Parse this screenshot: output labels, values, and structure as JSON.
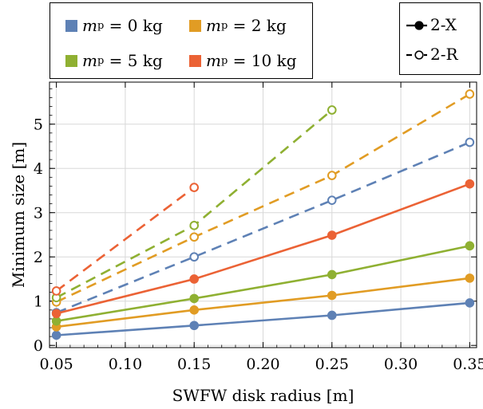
{
  "chart_data": {
    "type": "line",
    "xlabel": "SWFW disk radius [m]",
    "ylabel": "Minimum size [m]",
    "xlim": [
      0.045,
      0.355
    ],
    "ylim": [
      -0.05,
      5.95
    ],
    "x_ticks": [
      "0.05",
      "0.10",
      "0.15",
      "0.20",
      "0.25",
      "0.30",
      "0.35"
    ],
    "y_ticks": [
      "0",
      "1",
      "2",
      "3",
      "4",
      "5"
    ],
    "grid": true,
    "series": [
      {
        "name": "m_p = 0 kg",
        "type": "2-X",
        "color": "#5e81b5",
        "x": [
          0.05,
          0.15,
          0.25,
          0.35
        ],
        "values": [
          0.23,
          0.45,
          0.68,
          0.96
        ]
      },
      {
        "name": "m_p = 2 kg",
        "type": "2-X",
        "color": "#e19c24",
        "x": [
          0.05,
          0.15,
          0.25,
          0.35
        ],
        "values": [
          0.42,
          0.8,
          1.13,
          1.52
        ]
      },
      {
        "name": "m_p = 5 kg",
        "type": "2-X",
        "color": "#8fb032",
        "x": [
          0.05,
          0.15,
          0.25,
          0.35
        ],
        "values": [
          0.55,
          1.06,
          1.6,
          2.25
        ]
      },
      {
        "name": "m_p = 10 kg",
        "type": "2-X",
        "color": "#eb6235",
        "x": [
          0.05,
          0.15,
          0.25,
          0.35
        ],
        "values": [
          0.72,
          1.5,
          2.49,
          3.65
        ]
      },
      {
        "name": "m_p = 0 kg",
        "type": "2-R",
        "color": "#5e81b5",
        "x": [
          0.05,
          0.15,
          0.25,
          0.35
        ],
        "values": [
          0.74,
          2.0,
          3.28,
          4.59
        ]
      },
      {
        "name": "m_p = 2 kg",
        "type": "2-R",
        "color": "#e19c24",
        "x": [
          0.05,
          0.15,
          0.25,
          0.35
        ],
        "values": [
          0.98,
          2.45,
          3.84,
          5.68
        ]
      },
      {
        "name": "m_p = 5 kg",
        "type": "2-R",
        "color": "#8fb032",
        "x": [
          0.05,
          0.15,
          0.25
        ],
        "values": [
          1.08,
          2.71,
          5.32
        ]
      },
      {
        "name": "m_p = 10 kg",
        "type": "2-R",
        "color": "#eb6235",
        "x": [
          0.05,
          0.15
        ],
        "values": [
          1.23,
          3.57
        ]
      }
    ],
    "legend_mass": [
      {
        "label": "m",
        "sub": "p",
        "rest": " = 0 kg",
        "color": "#5e81b5"
      },
      {
        "label": "m",
        "sub": "p",
        "rest": " = 2 kg",
        "color": "#e19c24"
      },
      {
        "label": "m",
        "sub": "p",
        "rest": " = 5 kg",
        "color": "#8fb032"
      },
      {
        "label": "m",
        "sub": "p",
        "rest": " = 10 kg",
        "color": "#eb6235"
      }
    ],
    "legend_type": [
      {
        "label": "2-X",
        "style": "solid-filled"
      },
      {
        "label": "2-R",
        "style": "dashed-open"
      }
    ],
    "legend_placement": "top"
  }
}
